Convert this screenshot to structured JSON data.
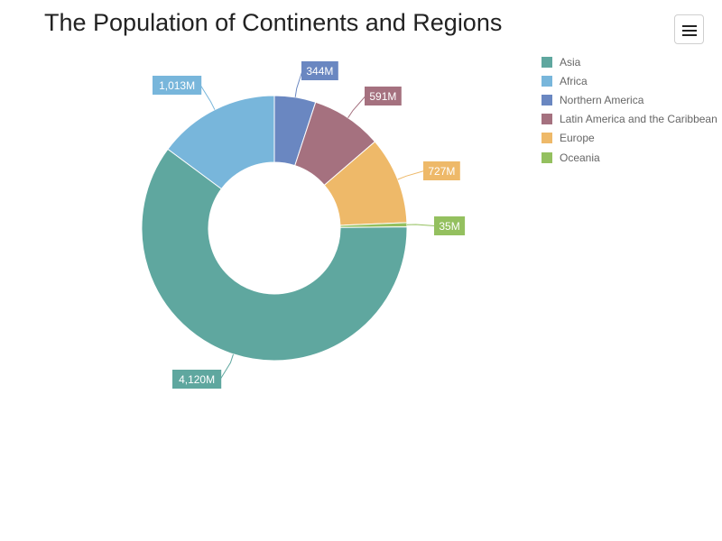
{
  "title": "The Population of Continents and Regions",
  "menu": {
    "icon": "hamburger-menu-icon"
  },
  "chart_data": {
    "type": "pie",
    "variant": "donut",
    "title": "The Population of Continents and Regions",
    "legend_position": "top-right",
    "slices": [
      {
        "name": "Asia",
        "value": 4120,
        "label": "4,120M",
        "color": "#5fa79f"
      },
      {
        "name": "Africa",
        "value": 1013,
        "label": "1,013M",
        "color": "#78b6db"
      },
      {
        "name": "Northern America",
        "value": 344,
        "label": "344M",
        "color": "#6a87c1"
      },
      {
        "name": "Latin America and the Caribbean",
        "value": 591,
        "label": "591M",
        "color": "#a5717f"
      },
      {
        "name": "Europe",
        "value": 727,
        "label": "727M",
        "color": "#eeb969"
      },
      {
        "name": "Oceania",
        "value": 35,
        "label": "35M",
        "color": "#94c05f"
      }
    ]
  }
}
